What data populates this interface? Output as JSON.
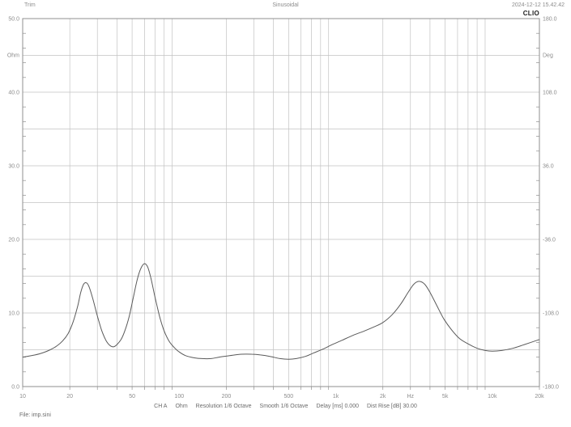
{
  "header": {
    "left": "Trim",
    "center": "Sinusoidal",
    "right": "2024-12-12 15.42.42"
  },
  "logo": "CLIO",
  "footer": {
    "file_label": "File: imp.sini",
    "status_segments": [
      "CH A",
      "Ohm",
      "Resolution 1/6 Octave",
      "Smooth 1/6 Octave",
      "Delay [ms] 0.000",
      "Dist Rise [dB] 30.00"
    ]
  },
  "colors": {
    "grid": "#c3c3c3",
    "border": "#8f8f8f",
    "curve": "#5a5a5a",
    "axis_text": "#8c8c8c"
  },
  "chart_data": {
    "type": "line",
    "title": "Sinusoidal",
    "x_axis": {
      "unit_label": "Hz",
      "scale": "log",
      "min": 10,
      "max": 20000,
      "tick_values": [
        10,
        20,
        50,
        100,
        200,
        500,
        1000,
        2000,
        5000,
        10000,
        20000
      ],
      "tick_labels": [
        "10",
        "20",
        "50",
        "100",
        "200",
        "500",
        "1k",
        "2k",
        "5k",
        "10k",
        "20k"
      ],
      "unit_label_freq": 3000,
      "grid": "log-decades"
    },
    "y_left": {
      "unit_label": "Ohm",
      "min": 0,
      "max": 50,
      "grid_step": 5,
      "minor_tick_step": 2,
      "tick_values": [
        50,
        40,
        30,
        20,
        10,
        0
      ],
      "tick_labels": [
        "50.0",
        "40.0",
        "30.0",
        "20.0",
        "10.0",
        "0.0"
      ]
    },
    "y_right": {
      "unit_label": "Deg",
      "min": -180,
      "max": 180,
      "tick_values": [
        180,
        108,
        36,
        -36,
        -108,
        -180
      ],
      "tick_labels": [
        "180.0",
        "108.0",
        "36.0",
        "-36.0",
        "-108.0",
        "-180.0"
      ]
    },
    "series": [
      {
        "name": "CH A impedance modulus",
        "color": "#5a5a5a",
        "points": [
          [
            10,
            4.0
          ],
          [
            11,
            4.15
          ],
          [
            12,
            4.3
          ],
          [
            13.5,
            4.6
          ],
          [
            15,
            5.0
          ],
          [
            16.5,
            5.5
          ],
          [
            18,
            6.2
          ],
          [
            19.5,
            7.2
          ],
          [
            21,
            8.8
          ],
          [
            22.5,
            11.0
          ],
          [
            23.5,
            12.8
          ],
          [
            24.5,
            13.9
          ],
          [
            25.5,
            14.1
          ],
          [
            26.5,
            13.6
          ],
          [
            28,
            12.0
          ],
          [
            30,
            9.6
          ],
          [
            32,
            7.6
          ],
          [
            34,
            6.3
          ],
          [
            36,
            5.6
          ],
          [
            38,
            5.4
          ],
          [
            40,
            5.7
          ],
          [
            42.5,
            6.4
          ],
          [
            45,
            7.6
          ],
          [
            48,
            9.6
          ],
          [
            51,
            12.2
          ],
          [
            54,
            14.6
          ],
          [
            57,
            16.1
          ],
          [
            60,
            16.7
          ],
          [
            63,
            16.2
          ],
          [
            66,
            14.7
          ],
          [
            70,
            12.2
          ],
          [
            75,
            9.5
          ],
          [
            80,
            7.6
          ],
          [
            86,
            6.2
          ],
          [
            93,
            5.3
          ],
          [
            100,
            4.7
          ],
          [
            110,
            4.2
          ],
          [
            125,
            3.9
          ],
          [
            140,
            3.8
          ],
          [
            160,
            3.8
          ],
          [
            180,
            4.0
          ],
          [
            210,
            4.2
          ],
          [
            250,
            4.4
          ],
          [
            290,
            4.4
          ],
          [
            330,
            4.3
          ],
          [
            380,
            4.1
          ],
          [
            440,
            3.8
          ],
          [
            500,
            3.7
          ],
          [
            560,
            3.8
          ],
          [
            640,
            4.1
          ],
          [
            730,
            4.6
          ],
          [
            830,
            5.1
          ],
          [
            950,
            5.7
          ],
          [
            1100,
            6.3
          ],
          [
            1300,
            7.0
          ],
          [
            1500,
            7.5
          ],
          [
            1750,
            8.1
          ],
          [
            2000,
            8.7
          ],
          [
            2300,
            9.8
          ],
          [
            2600,
            11.2
          ],
          [
            2900,
            12.8
          ],
          [
            3150,
            13.9
          ],
          [
            3400,
            14.3
          ],
          [
            3700,
            13.9
          ],
          [
            4000,
            12.8
          ],
          [
            4400,
            11.1
          ],
          [
            4900,
            9.2
          ],
          [
            5500,
            7.7
          ],
          [
            6200,
            6.5
          ],
          [
            7000,
            5.8
          ],
          [
            8000,
            5.2
          ],
          [
            9000,
            4.9
          ],
          [
            10000,
            4.8
          ],
          [
            11500,
            4.9
          ],
          [
            13500,
            5.2
          ],
          [
            16000,
            5.7
          ],
          [
            20000,
            6.4
          ]
        ]
      }
    ]
  }
}
